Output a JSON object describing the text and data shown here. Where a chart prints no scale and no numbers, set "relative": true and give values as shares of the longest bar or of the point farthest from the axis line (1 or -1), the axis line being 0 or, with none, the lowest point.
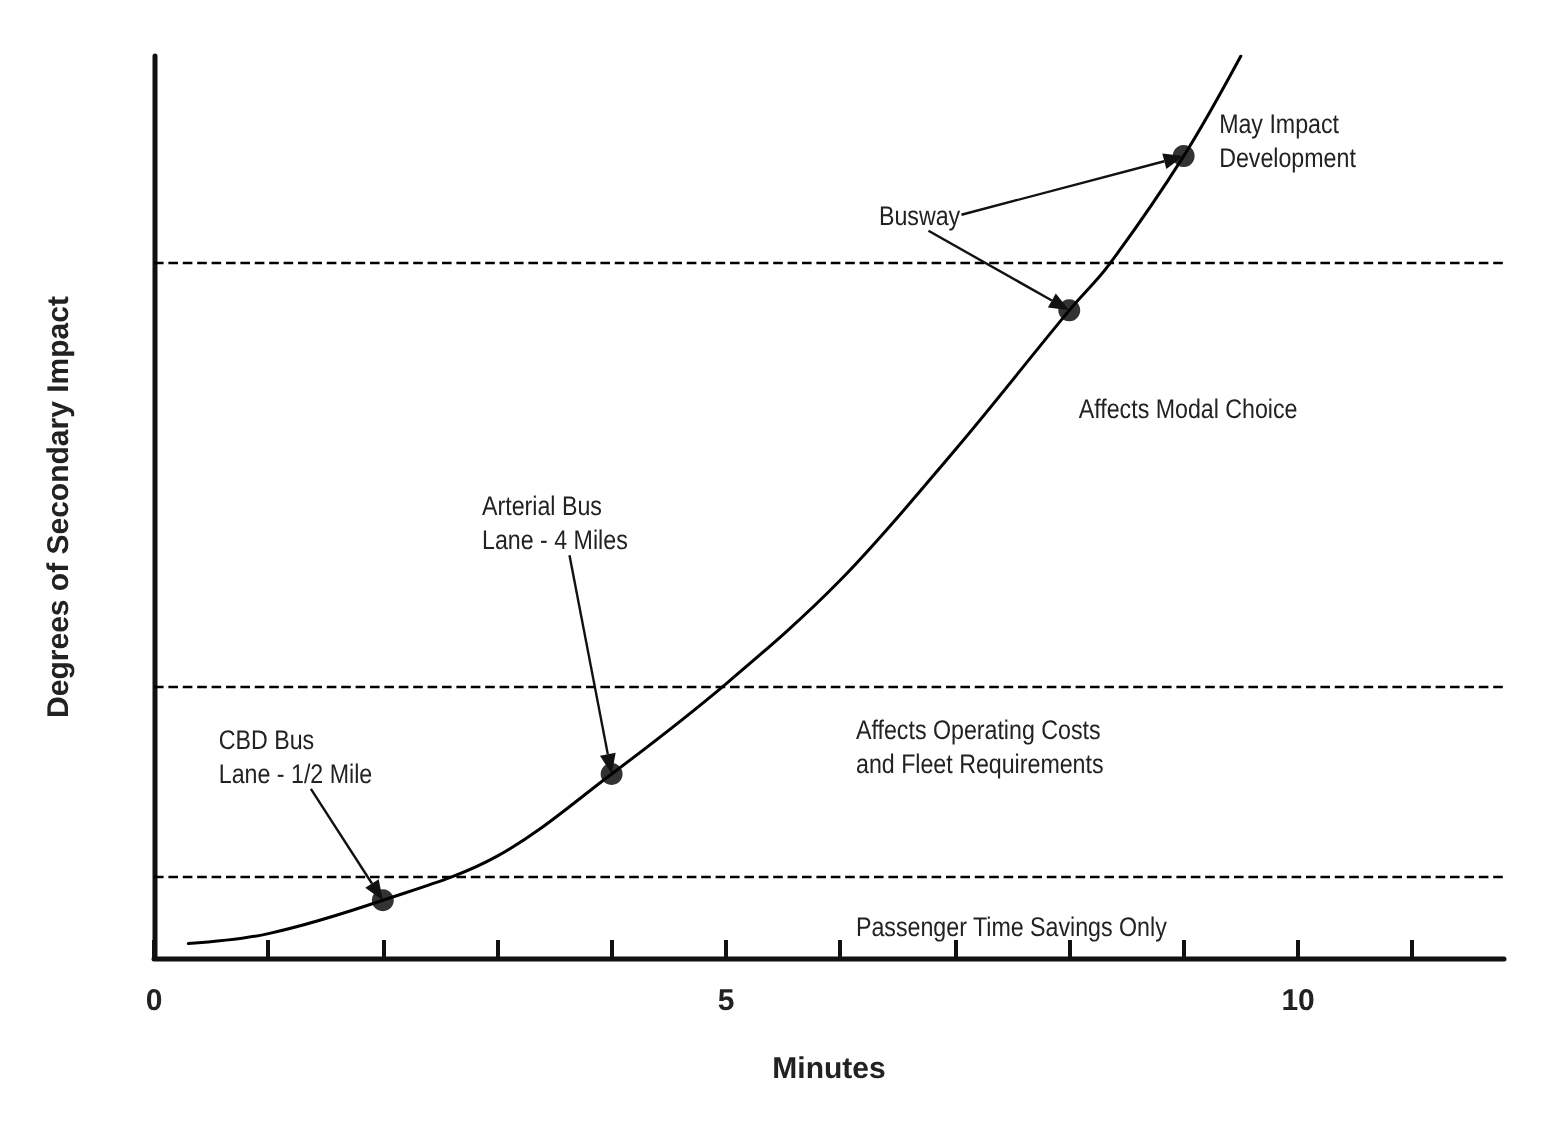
{
  "chart_data": {
    "type": "line",
    "relative": true,
    "xlabel": "Minutes",
    "ylabel": "Degrees of Secondary Impact",
    "xlim": [
      0,
      11.8
    ],
    "xticks": [
      0,
      {
        "value": 1,
        "label": null
      },
      {
        "value": 2,
        "label": null
      },
      {
        "value": 3,
        "label": null
      },
      {
        "value": 4,
        "label": null
      },
      5,
      {
        "value": 6,
        "label": null
      },
      {
        "value": 7,
        "label": null
      },
      {
        "value": 8,
        "label": null
      },
      {
        "value": 9,
        "label": null
      },
      10,
      {
        "value": 11,
        "label": null
      }
    ],
    "grid": false,
    "series": [
      {
        "color": "#000000",
        "marker": "none",
        "x": [
          0.3,
          1,
          2,
          3,
          4,
          5,
          6,
          7,
          8,
          8.35,
          9,
          9.5
        ],
        "values": [
          0.016,
          0.027,
          0.064,
          0.113,
          0.204,
          0.304,
          0.419,
          0.563,
          0.718,
          0.769,
          0.889,
          1
        ]
      },
      {
        "type": "scatter",
        "color": "#000000",
        "marker": "circle",
        "x": [
          2,
          4,
          8,
          9
        ],
        "values": [
          0.064,
          0.204,
          0.718,
          0.889
        ]
      }
    ],
    "ref_lines": [
      {
        "axis": "y",
        "value": 0.769,
        "color": "#000000",
        "line_style": "dashed"
      },
      {
        "axis": "y",
        "value": 0.302,
        "color": "#000000",
        "line_style": "dashed"
      },
      {
        "axis": "y",
        "value": 0.093,
        "color": "#000000",
        "line_style": "dashed"
      }
    ],
    "annotations": [
      "CBD Bus\nLane - 1/2 Mile",
      "Arterial Bus\nLane - 4 Miles",
      "Busway",
      "May Impact\nDevelopment",
      "Affects Modal Choice",
      "Affects Operating Costs\nand Fleet Requirements",
      "Passenger Time Savings Only"
    ]
  }
}
